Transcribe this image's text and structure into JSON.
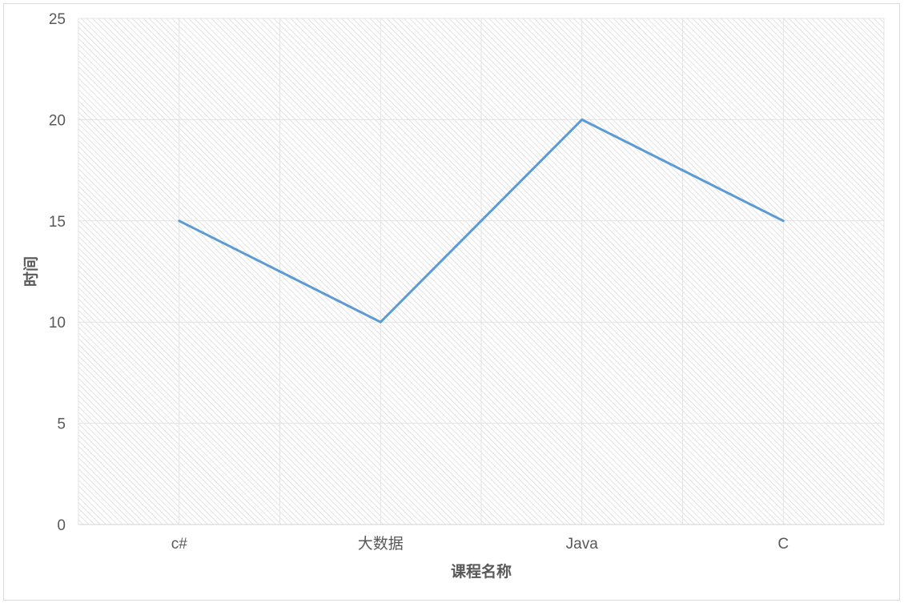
{
  "chart_data": {
    "type": "line",
    "title": "",
    "xlabel": "课程名称",
    "ylabel": "时间",
    "categories": [
      "c#",
      "大数据",
      "Java",
      "C"
    ],
    "series": [
      {
        "name": "时间",
        "values": [
          15,
          10,
          20,
          15
        ],
        "color": "#5b9bd5"
      }
    ],
    "ylim": [
      0,
      25
    ],
    "yticks": [
      0,
      5,
      10,
      15,
      20,
      25
    ],
    "grid": true,
    "legend": "none",
    "colors": {
      "line": "#5b9bd5",
      "grid": "#e3e3e3",
      "hatch": "#d6d6d6",
      "text": "#595959"
    }
  }
}
